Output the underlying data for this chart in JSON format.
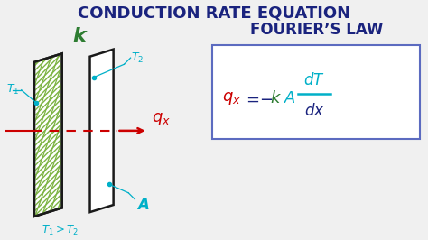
{
  "title": "CONDUCTION RATE EQUATION",
  "title_color": "#1a237e",
  "bg_color": "#f0f0f0",
  "fourier_label": "FOURIER’S LAW",
  "fourier_color": "#1a237e",
  "qx_color": "#cc0000",
  "k_color": "#2e7d32",
  "A_color": "#00b0c8",
  "T_color": "#00b0c8",
  "arrow_color": "#cc0000",
  "plate_edge_color": "#1a1a1a",
  "hatch_color": "#7cb342",
  "box_color": "#5c6bc0",
  "eq_minus_k_color": "#2e7d32",
  "eq_dT_color": "#00b0c8",
  "eq_dx_color": "#1a237e"
}
